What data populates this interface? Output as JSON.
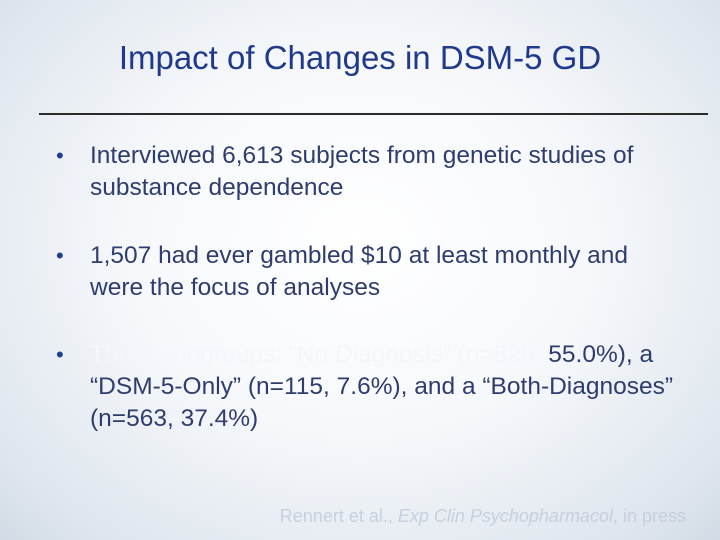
{
  "slide": {
    "title": "Impact of Changes in DSM-5 GD",
    "bullets": [
      {
        "text": "Interviewed 6,613 subjects from genetic studies of substance dependence"
      },
      {
        "text": "1,507 had ever gambled $10 at least monthly  and were the focus of analyses"
      },
      {
        "first_line": "Three subgroups: “No Diagnosis” (n=829,",
        "rest": "55.0%), a “DSM-5-Only” (n=115, 7.6%), and a “Both-Diagnoses” (n=563, 37.4%)"
      }
    ],
    "citation": {
      "authors": "Rennert et al.,",
      "journal": "Exp Clin Psychopharmacol",
      "status": ", in press"
    }
  },
  "colors": {
    "title": "#1f3a8c",
    "body_text": "#2e3d6e",
    "bullet_dot": "#1e3f93",
    "rule": "#2b2b2b"
  }
}
